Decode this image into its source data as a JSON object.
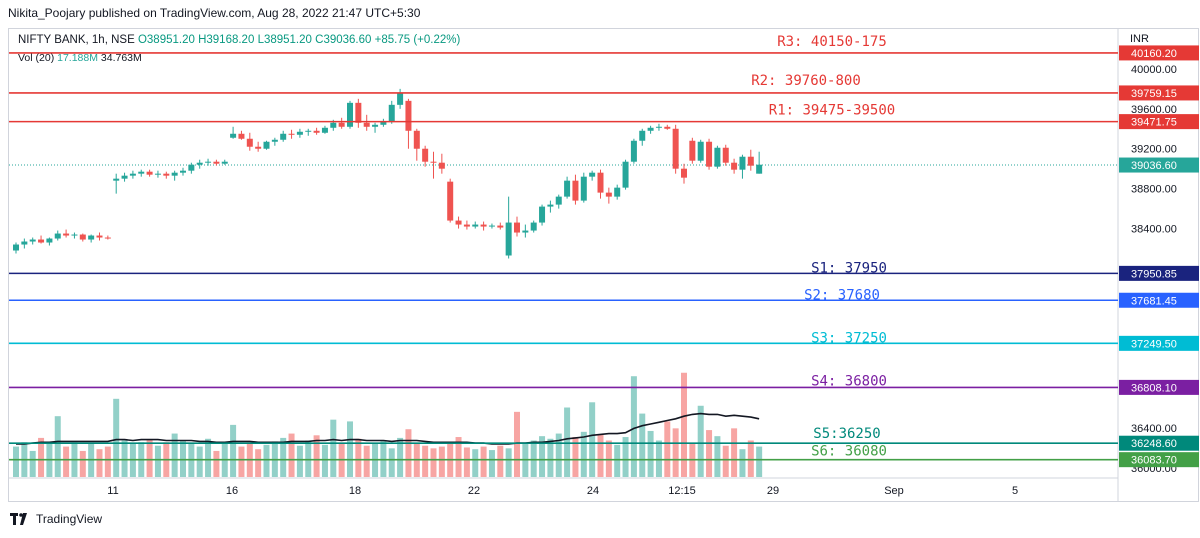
{
  "header": {
    "published_by": "Nikita_Poojary published on TradingView.com, Aug 28, 2022 21:47 UTC+5:30"
  },
  "legend": {
    "symbol": "NIFTY BANK, 1h, NSE",
    "open": "O38951.20",
    "high": "H39168.20",
    "low": "L38951.20",
    "close": "C39036.60",
    "change": "+85.75 (+0.22%)"
  },
  "volume_legend": {
    "label": "Vol (20)",
    "value1": "17.188M",
    "value2": "34.763M"
  },
  "footer": {
    "brand": "TradingView"
  },
  "colors": {
    "up": "#26a69a",
    "down": "#ef5350",
    "vol_up": "#92d0c8",
    "vol_down": "#f7a5a3",
    "resistance": "#e53935",
    "s1": "#1a237e",
    "s2": "#2962ff",
    "s3": "#00bcd4",
    "s4": "#7b1fa2",
    "s5": "#00897b",
    "s6": "#43a047",
    "current": "#26a69a"
  },
  "chart_data": {
    "type": "candlestick",
    "currency": "INR",
    "ylim": [
      35900,
      40400
    ],
    "y_ticks": [
      40000,
      39600,
      39200,
      38800,
      38400,
      36400,
      36000
    ],
    "y_tick_labels": [
      "40000.00",
      "39600.00",
      "39200.00",
      "38800.00",
      "38400.00",
      "36400.00",
      "36000.00"
    ],
    "x_labels": [
      "11",
      "16",
      "18",
      "22",
      "24",
      "12:15",
      "29",
      "Sep",
      "5"
    ],
    "current_price": {
      "value": 39036.6,
      "label": "39036.60"
    },
    "levels": [
      {
        "id": "r3",
        "label": "R3: 40150-175",
        "value": 40160.2,
        "price_label": "40160.20",
        "color_key": "resistance"
      },
      {
        "id": "r2",
        "label": "R2: 39760-800",
        "value": 39759.15,
        "price_label": "39759.15",
        "color_key": "resistance"
      },
      {
        "id": "r1",
        "label": "R1: 39475-39500",
        "value": 39471.75,
        "price_label": "39471.75",
        "color_key": "resistance"
      },
      {
        "id": "s1",
        "label": "S1: 37950",
        "value": 37950.85,
        "price_label": "37950.85",
        "color_key": "s1"
      },
      {
        "id": "s2",
        "label": "S2: 37680",
        "value": 37681.45,
        "price_label": "37681.45",
        "color_key": "s2"
      },
      {
        "id": "s3",
        "label": "S3: 37250",
        "value": 37249.5,
        "price_label": "37249.50",
        "color_key": "s3"
      },
      {
        "id": "s4",
        "label": "S4: 36800",
        "value": 36808.1,
        "price_label": "36808.10",
        "color_key": "s4"
      },
      {
        "id": "s5",
        "label": "S5:36250",
        "value": 36248.6,
        "price_label": "36248.60",
        "color_key": "s5"
      },
      {
        "id": "s6",
        "label": "S6: 36080",
        "value": 36083.7,
        "price_label": "36083.70",
        "color_key": "s6"
      }
    ],
    "candles": [
      [
        38180,
        38260,
        38150,
        38240
      ],
      [
        38240,
        38300,
        38200,
        38270
      ],
      [
        38270,
        38310,
        38240,
        38290
      ],
      [
        38290,
        38330,
        38250,
        38260
      ],
      [
        38260,
        38310,
        38230,
        38300
      ],
      [
        38300,
        38380,
        38280,
        38350
      ],
      [
        38350,
        38390,
        38310,
        38330
      ],
      [
        38330,
        38360,
        38300,
        38340
      ],
      [
        38340,
        38350,
        38270,
        38290
      ],
      [
        38290,
        38340,
        38260,
        38330
      ],
      [
        38330,
        38360,
        38280,
        38310
      ],
      [
        38310,
        38330,
        38290,
        38300
      ],
      [
        38880,
        38950,
        38750,
        38900
      ],
      [
        38900,
        38960,
        38870,
        38930
      ],
      [
        38930,
        38980,
        38900,
        38950
      ],
      [
        38950,
        38990,
        38920,
        38970
      ],
      [
        38970,
        38990,
        38920,
        38940
      ],
      [
        38940,
        38980,
        38910,
        38950
      ],
      [
        38950,
        38970,
        38900,
        38930
      ],
      [
        38930,
        38980,
        38880,
        38960
      ],
      [
        38960,
        39010,
        38930,
        38980
      ],
      [
        38980,
        39060,
        38950,
        39040
      ],
      [
        39040,
        39090,
        39000,
        39060
      ],
      [
        39060,
        39100,
        39030,
        39070
      ],
      [
        39070,
        39090,
        39030,
        39050
      ],
      [
        39050,
        39090,
        39040,
        39070
      ],
      [
        39310,
        39420,
        39300,
        39350
      ],
      [
        39350,
        39380,
        39290,
        39300
      ],
      [
        39300,
        39360,
        39180,
        39220
      ],
      [
        39220,
        39270,
        39170,
        39200
      ],
      [
        39200,
        39280,
        39190,
        39270
      ],
      [
        39270,
        39310,
        39230,
        39290
      ],
      [
        39290,
        39380,
        39270,
        39350
      ],
      [
        39350,
        39390,
        39300,
        39340
      ],
      [
        39340,
        39400,
        39310,
        39370
      ],
      [
        39370,
        39400,
        39330,
        39380
      ],
      [
        39380,
        39410,
        39340,
        39360
      ],
      [
        39360,
        39430,
        39350,
        39410
      ],
      [
        39410,
        39490,
        39380,
        39460
      ],
      [
        39460,
        39510,
        39400,
        39420
      ],
      [
        39420,
        39680,
        39400,
        39660
      ],
      [
        39660,
        39700,
        39410,
        39460
      ],
      [
        39460,
        39540,
        39380,
        39420
      ],
      [
        39420,
        39460,
        39360,
        39440
      ],
      [
        39440,
        39500,
        39420,
        39470
      ],
      [
        39470,
        39680,
        39450,
        39640
      ],
      [
        39640,
        39800,
        39600,
        39760
      ],
      [
        39680,
        39700,
        39200,
        39380
      ],
      [
        39380,
        39400,
        39080,
        39200
      ],
      [
        39200,
        39230,
        39020,
        39070
      ],
      [
        39070,
        39170,
        38900,
        39060
      ],
      [
        39060,
        39150,
        38950,
        39000
      ],
      [
        38870,
        38900,
        38460,
        38480
      ],
      [
        38480,
        38520,
        38400,
        38440
      ],
      [
        38440,
        38480,
        38390,
        38420
      ],
      [
        38420,
        38470,
        38400,
        38440
      ],
      [
        38440,
        38470,
        38380,
        38420
      ],
      [
        38420,
        38450,
        38400,
        38430
      ],
      [
        38430,
        38460,
        38390,
        38410
      ],
      [
        38130,
        38720,
        38100,
        38460
      ],
      [
        38460,
        38520,
        38320,
        38360
      ],
      [
        38360,
        38440,
        38310,
        38380
      ],
      [
        38380,
        38480,
        38360,
        38460
      ],
      [
        38460,
        38640,
        38430,
        38620
      ],
      [
        38620,
        38680,
        38560,
        38640
      ],
      [
        38640,
        38740,
        38600,
        38720
      ],
      [
        38720,
        38920,
        38700,
        38880
      ],
      [
        38880,
        38940,
        38640,
        38680
      ],
      [
        38680,
        38960,
        38660,
        38920
      ],
      [
        38920,
        38980,
        38880,
        38960
      ],
      [
        38960,
        38990,
        38700,
        38760
      ],
      [
        38760,
        38810,
        38650,
        38720
      ],
      [
        38720,
        38840,
        38690,
        38810
      ],
      [
        38810,
        39090,
        38790,
        39070
      ],
      [
        39070,
        39300,
        39050,
        39280
      ],
      [
        39280,
        39400,
        39230,
        39380
      ],
      [
        39380,
        39430,
        39350,
        39410
      ],
      [
        39410,
        39450,
        39380,
        39420
      ],
      [
        39420,
        39440,
        39390,
        39400
      ],
      [
        39400,
        39440,
        38950,
        39000
      ],
      [
        39000,
        39050,
        38850,
        38910
      ],
      [
        39280,
        39310,
        39050,
        39080
      ],
      [
        39080,
        39290,
        39060,
        39270
      ],
      [
        39270,
        39300,
        38990,
        39020
      ],
      [
        39020,
        39230,
        39000,
        39210
      ],
      [
        39210,
        39240,
        39030,
        39060
      ],
      [
        39060,
        39100,
        38950,
        38990
      ],
      [
        38990,
        39140,
        38900,
        39120
      ],
      [
        39120,
        39190,
        38980,
        39030
      ],
      [
        38950,
        39170,
        38950,
        39040
      ]
    ],
    "volume_ylim": [
      0,
      16
    ],
    "volume": [
      3.5,
      4,
      3,
      4.5,
      4,
      7,
      3.5,
      4,
      3,
      3.8,
      3.2,
      3.5,
      9,
      4.2,
      3.8,
      4,
      4.3,
      3.6,
      4,
      5,
      4.2,
      3.8,
      3.5,
      4.4,
      3,
      4,
      6,
      3.5,
      4,
      3.2,
      3.7,
      4.1,
      4.5,
      5,
      3.6,
      4.2,
      4.8,
      3.7,
      6.6,
      3.8,
      6.4,
      4.4,
      3.6,
      3.9,
      4.2,
      3.3,
      4.5,
      5.5,
      3.8,
      3.6,
      3.3,
      3.5,
      3.9,
      4.6,
      3.4,
      3.2,
      3.5,
      3.1,
      3.6,
      3.3,
      7.5,
      3.8,
      4.2,
      4.7,
      4.4,
      5,
      8,
      4.6,
      5.2,
      8.6,
      4.9,
      4.2,
      3.7,
      4.6,
      11.6,
      7.3,
      5.3,
      4.2,
      6.4,
      5.6,
      12,
      3.9,
      8.2,
      5.4,
      4.7,
      3.6,
      5.6,
      3.2,
      4.2,
      3.5
    ],
    "volume_ma": [
      3.8,
      3.8,
      3.9,
      4.0,
      4.0,
      4.1,
      4.1,
      4.1,
      4.1,
      4.1,
      4.1,
      4.1,
      4.3,
      4.3,
      4.2,
      4.3,
      4.3,
      4.3,
      4.2,
      4.2,
      4.2,
      4.2,
      4.1,
      4.1,
      4.0,
      4.0,
      4.1,
      4.1,
      4.1,
      4.0,
      4.0,
      4.0,
      4.0,
      4.1,
      4.1,
      4.1,
      4.2,
      4.2,
      4.3,
      4.2,
      4.3,
      4.3,
      4.2,
      4.2,
      4.2,
      4.1,
      4.2,
      4.2,
      4.2,
      4.1,
      4.0,
      4.0,
      4.0,
      4.0,
      4.0,
      3.9,
      3.9,
      3.8,
      3.8,
      3.8,
      3.9,
      3.9,
      4.0,
      4.0,
      4.1,
      4.2,
      4.4,
      4.5,
      4.6,
      4.8,
      4.9,
      5.0,
      5.0,
      5.1,
      5.6,
      5.9,
      6.1,
      6.3,
      6.5,
      6.7,
      7.0,
      7.2,
      7.3,
      7.2,
      7.2,
      7.0,
      7.1,
      7.0,
      6.9,
      6.7
    ]
  }
}
